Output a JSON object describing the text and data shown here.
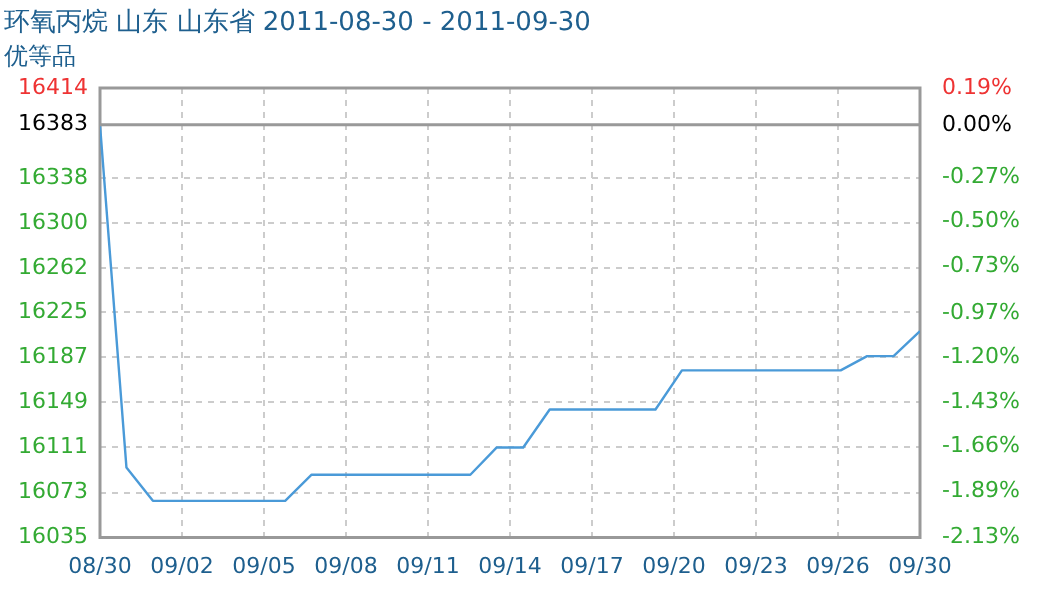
{
  "chart_data": {
    "type": "line",
    "title": "环氧丙烷 山东 山东省 2011-08-30 - 2011-09-30",
    "subtitle": "优等品",
    "series": [
      {
        "color": "#4a9ad8",
        "x": [
          "2011-08-30",
          "2011-08-31",
          "2011-09-01",
          "2011-09-06",
          "2011-09-07",
          "2011-09-13",
          "2011-09-14",
          "2011-09-15",
          "2011-09-16",
          "2011-09-20",
          "2011-09-21",
          "2011-09-27",
          "2011-09-28",
          "2011-09-29",
          "2011-09-30"
        ],
        "values": [
          16383,
          16094,
          16066,
          16066,
          16088,
          16088,
          16111,
          16111,
          16143,
          16143,
          16176,
          16176,
          16188,
          16188,
          16209
        ]
      }
    ],
    "xlim": [
      "2011-08-30",
      "2011-09-30"
    ],
    "xticks": [
      {
        "value": "2011-08-30",
        "label": "08/30"
      },
      {
        "value": "2011-09-02T02:24",
        "label": "09/02"
      },
      {
        "value": "2011-09-05T04:48",
        "label": "09/05"
      },
      {
        "value": "2011-09-08T07:12",
        "label": "09/08"
      },
      {
        "value": "2011-09-11T09:36",
        "label": "09/11"
      },
      {
        "value": "2011-09-14T12:00",
        "label": "09/14"
      },
      {
        "value": "2011-09-17T14:24",
        "label": "09/17"
      },
      {
        "value": "2011-09-20T16:48",
        "label": "09/20"
      },
      {
        "value": "2011-09-23T19:12",
        "label": "09/23"
      },
      {
        "value": "2011-09-26T21:36",
        "label": "09/26"
      },
      {
        "value": "2011-09-30",
        "label": "09/30"
      }
    ],
    "ylim": [
      16035,
      16414
    ],
    "yticks": [
      16035,
      16073,
      16111,
      16149,
      16187,
      16225,
      16262,
      16300,
      16338,
      16383,
      16414
    ],
    "y2lim": [
      -2.13,
      0.19
    ],
    "y2ticks": [
      {
        "value": -2.13,
        "label": "-2.13%"
      },
      {
        "value": -1.89,
        "label": "-1.89%"
      },
      {
        "value": -1.66,
        "label": "-1.66%"
      },
      {
        "value": -1.43,
        "label": "-1.43%"
      },
      {
        "value": -1.2,
        "label": "-1.20%"
      },
      {
        "value": -0.97,
        "label": "-0.97%"
      },
      {
        "value": -0.73,
        "label": "-0.73%"
      },
      {
        "value": -0.5,
        "label": "-0.50%"
      },
      {
        "value": -0.27,
        "label": "-0.27%"
      },
      {
        "value": 0,
        "label": "0.00%"
      },
      {
        "value": 0.19,
        "label": "0.19%"
      }
    ],
    "ref_lines": [
      {
        "axis": "y",
        "value": 16383,
        "color": "#999999"
      }
    ],
    "grid": true,
    "legend": false,
    "marker": "none",
    "line_style": "solid"
  }
}
